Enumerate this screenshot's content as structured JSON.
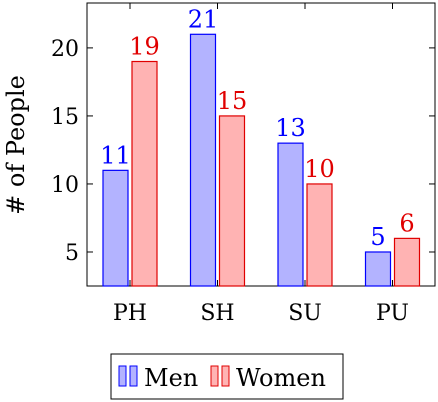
{
  "chart_data": {
    "type": "bar",
    "categories": [
      "PH",
      "SH",
      "SU",
      "PU"
    ],
    "series": [
      {
        "name": "Men",
        "values": [
          11,
          21,
          13,
          5
        ],
        "fill": "#b3b3ff",
        "stroke": "#0000ff",
        "label_color": "#0000ff"
      },
      {
        "name": "Women",
        "values": [
          19,
          15,
          10,
          6
        ],
        "fill": "#ffb3b3",
        "stroke": "#e00000",
        "label_color": "#e00000"
      }
    ],
    "xlabel": "",
    "ylabel": "# of People",
    "ylim": [
      2.5,
      23.3
    ],
    "yticks": [
      5,
      10,
      15,
      20
    ],
    "grid": false,
    "legend_position": "bottom-center"
  }
}
